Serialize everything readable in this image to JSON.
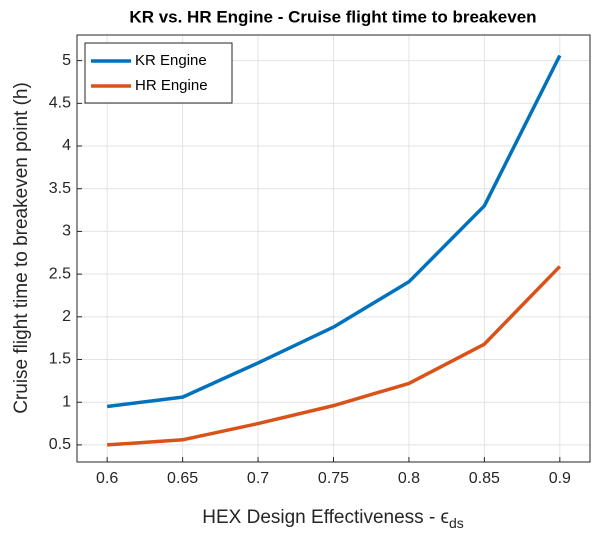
{
  "chart_data": {
    "type": "line",
    "title": "KR vs. HR Engine - Cruise flight time to breakeven",
    "xlabel": "HEX Design Effectiveness - ϵ",
    "xlabel_subscript": "ds",
    "ylabel": "Cruise flight time to breakeven point (h)",
    "x": [
      0.6,
      0.65,
      0.7,
      0.75,
      0.8,
      0.85,
      0.9
    ],
    "series": [
      {
        "name": "KR Engine",
        "color": "#0072BD",
        "values": [
          0.95,
          1.06,
          1.46,
          1.88,
          2.41,
          3.3,
          5.06
        ]
      },
      {
        "name": "HR Engine",
        "color": "#D95319",
        "values": [
          0.5,
          0.56,
          0.75,
          0.96,
          1.22,
          1.68,
          2.59
        ]
      }
    ],
    "xlim": [
      0.58,
      0.92
    ],
    "xticks": [
      0.6,
      0.65,
      0.7,
      0.75,
      0.8,
      0.85,
      0.9
    ],
    "ylim": [
      0.3,
      5.3
    ],
    "yticks": [
      0.5,
      1,
      1.5,
      2,
      2.5,
      3,
      3.5,
      4,
      4.5,
      5
    ],
    "grid": true,
    "legend": "upper left"
  }
}
